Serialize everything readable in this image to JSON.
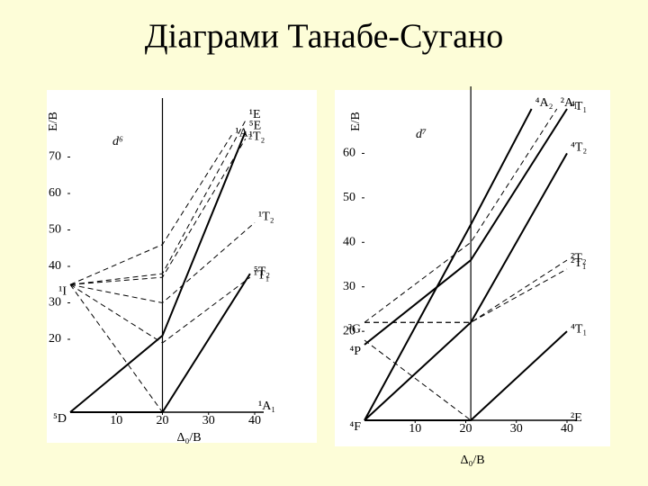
{
  "title": "Діаграми Танабе-Сугано",
  "chart_data": [
    {
      "type": "line",
      "annotation": "d⁶",
      "x_label": "Δ₀/B",
      "y_label": "E/B",
      "xlim": [
        0,
        40
      ],
      "ylim": [
        0,
        80
      ],
      "xticks": [
        10,
        20,
        30,
        40
      ],
      "yticks": [
        20,
        30,
        40,
        50,
        60,
        70
      ],
      "crossover": 20,
      "terms": [
        {
          "label": "⁵D",
          "value": 0
        },
        {
          "label": "¹I",
          "value": 35
        }
      ],
      "series": [
        {
          "name": "⁵E",
          "color": "#000000",
          "dashed": false,
          "x": [
            0,
            20,
            38
          ],
          "y": [
            0,
            21,
            77
          ]
        },
        {
          "name": "⁵T₂",
          "color": "#000000",
          "dashed": false,
          "x": [
            0,
            20,
            39
          ],
          "y": [
            0,
            0,
            38
          ]
        },
        {
          "name": "¹A₁",
          "color": "#000000",
          "dashed": true,
          "x": [
            0,
            20,
            40
          ],
          "y": [
            35,
            0,
            0
          ]
        },
        {
          "name": "¹T₁",
          "color": "#000000",
          "dashed": true,
          "x": [
            0,
            20,
            39
          ],
          "y": [
            35,
            19,
            37
          ]
        },
        {
          "name": "¹T₂",
          "color": "#000000",
          "dashed": true,
          "x": [
            0,
            20,
            40
          ],
          "y": [
            35,
            30,
            52
          ]
        },
        {
          "name": "¹A₂",
          "color": "#000000",
          "dashed": true,
          "x": [
            0,
            20,
            35
          ],
          "y": [
            35,
            46,
            76
          ]
        },
        {
          "name": "¹E",
          "color": "#000000",
          "dashed": true,
          "x": [
            0,
            20,
            38
          ],
          "y": [
            35,
            38,
            80
          ]
        },
        {
          "name": "¹T₂",
          "color": "#000000",
          "dashed": true,
          "x": [
            0,
            20,
            38
          ],
          "y": [
            35,
            37,
            75
          ]
        }
      ]
    },
    {
      "type": "line",
      "annotation": "d⁷",
      "x_label": "Δ₀/B",
      "y_label": "E/B",
      "xlim": [
        0,
        40
      ],
      "ylim": [
        0,
        70
      ],
      "xticks": [
        10,
        20,
        30,
        40
      ],
      "yticks": [
        20,
        30,
        40,
        50,
        60
      ],
      "crossover": 21,
      "terms": [
        {
          "label": "⁴F",
          "value": 0
        },
        {
          "label": "²G",
          "value": 22
        },
        {
          "label": "⁴P",
          "value": 17
        }
      ],
      "series": [
        {
          "name": "⁴A₂",
          "color": "#000000",
          "dashed": false,
          "x": [
            0,
            21,
            33
          ],
          "y": [
            0,
            44,
            70
          ]
        },
        {
          "name": "⁴T₁",
          "color": "#000000",
          "dashed": false,
          "x": [
            0,
            21,
            40
          ],
          "y": [
            17,
            36,
            70
          ]
        },
        {
          "name": "⁴T₂",
          "color": "#000000",
          "dashed": false,
          "x": [
            0,
            21,
            40
          ],
          "y": [
            0,
            22,
            60
          ]
        },
        {
          "name": "⁴T₁",
          "color": "#000000",
          "dashed": false,
          "x": [
            0,
            21,
            40
          ],
          "y": [
            0,
            0,
            20
          ]
        },
        {
          "name": "²A₁",
          "color": "#000000",
          "dashed": true,
          "x": [
            0,
            21,
            38
          ],
          "y": [
            22,
            40,
            70
          ]
        },
        {
          "name": "²T₂",
          "color": "#000000",
          "dashed": true,
          "x": [
            0,
            21,
            40
          ],
          "y": [
            22,
            22,
            36
          ]
        },
        {
          "name": "²T₁",
          "color": "#000000",
          "dashed": true,
          "x": [
            0,
            21,
            40
          ],
          "y": [
            22,
            22,
            34
          ]
        },
        {
          "name": "²E",
          "color": "#000000",
          "dashed": true,
          "x": [
            0,
            21,
            40
          ],
          "y": [
            18,
            0,
            0
          ]
        }
      ]
    }
  ]
}
